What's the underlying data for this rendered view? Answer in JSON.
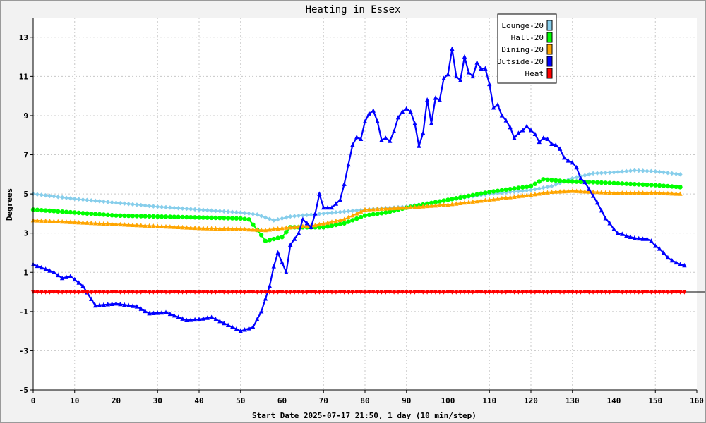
{
  "chart_data": {
    "type": "line",
    "title": "Heating in Essex",
    "xlabel": "Start Date 2025-07-17 21:50, 1 day (10 min/step)",
    "ylabel": "Degrees",
    "xlim": [
      0,
      160
    ],
    "ylim": [
      -5,
      14
    ],
    "x_ticks": [
      0,
      10,
      20,
      30,
      40,
      50,
      60,
      70,
      80,
      90,
      100,
      110,
      120,
      130,
      140,
      150,
      160
    ],
    "y_ticks": [
      -5,
      -3,
      -1,
      1,
      3,
      5,
      7,
      9,
      11,
      13
    ],
    "grid": true,
    "legend_position": "top-right",
    "series": [
      {
        "name": "Lounge-20",
        "color": "#87ceeb",
        "marker": "diamond",
        "points": [
          [
            0,
            5.0
          ],
          [
            10,
            4.75
          ],
          [
            20,
            4.55
          ],
          [
            30,
            4.35
          ],
          [
            40,
            4.2
          ],
          [
            50,
            4.05
          ],
          [
            54,
            3.95
          ],
          [
            58,
            3.65
          ],
          [
            62,
            3.85
          ],
          [
            70,
            4.0
          ],
          [
            80,
            4.2
          ],
          [
            90,
            4.35
          ],
          [
            100,
            4.7
          ],
          [
            110,
            5.0
          ],
          [
            120,
            5.2
          ],
          [
            125,
            5.4
          ],
          [
            130,
            5.8
          ],
          [
            135,
            6.05
          ],
          [
            140,
            6.1
          ],
          [
            145,
            6.2
          ],
          [
            150,
            6.15
          ],
          [
            156,
            6.0
          ]
        ]
      },
      {
        "name": "Hall-20",
        "color": "#00ff00",
        "marker": "circle",
        "points": [
          [
            0,
            4.2
          ],
          [
            10,
            4.05
          ],
          [
            20,
            3.9
          ],
          [
            30,
            3.85
          ],
          [
            40,
            3.8
          ],
          [
            50,
            3.75
          ],
          [
            52,
            3.7
          ],
          [
            55,
            2.9
          ],
          [
            56,
            2.6
          ],
          [
            60,
            2.8
          ],
          [
            62,
            3.3
          ],
          [
            70,
            3.3
          ],
          [
            75,
            3.5
          ],
          [
            80,
            3.9
          ],
          [
            85,
            4.05
          ],
          [
            90,
            4.3
          ],
          [
            100,
            4.7
          ],
          [
            105,
            4.9
          ],
          [
            110,
            5.1
          ],
          [
            115,
            5.25
          ],
          [
            120,
            5.4
          ],
          [
            123,
            5.75
          ],
          [
            128,
            5.65
          ],
          [
            135,
            5.6
          ],
          [
            145,
            5.5
          ],
          [
            150,
            5.45
          ],
          [
            156,
            5.35
          ]
        ]
      },
      {
        "name": "Dining-20",
        "color": "#ffa500",
        "marker": "triangle-up",
        "points": [
          [
            0,
            3.65
          ],
          [
            10,
            3.55
          ],
          [
            20,
            3.45
          ],
          [
            30,
            3.35
          ],
          [
            40,
            3.25
          ],
          [
            50,
            3.2
          ],
          [
            56,
            3.15
          ],
          [
            60,
            3.25
          ],
          [
            68,
            3.4
          ],
          [
            75,
            3.7
          ],
          [
            80,
            4.2
          ],
          [
            85,
            4.25
          ],
          [
            90,
            4.3
          ],
          [
            100,
            4.45
          ],
          [
            110,
            4.7
          ],
          [
            120,
            4.95
          ],
          [
            125,
            5.1
          ],
          [
            130,
            5.15
          ],
          [
            140,
            5.05
          ],
          [
            150,
            5.05
          ],
          [
            156,
            5.0
          ]
        ]
      },
      {
        "name": "Outside-20",
        "color": "#0000ff",
        "marker": "triangle-up",
        "points": [
          [
            0,
            1.4
          ],
          [
            5,
            1.0
          ],
          [
            7,
            0.7
          ],
          [
            9,
            0.8
          ],
          [
            12,
            0.3
          ],
          [
            15,
            -0.7
          ],
          [
            20,
            -0.6
          ],
          [
            25,
            -0.75
          ],
          [
            28,
            -1.1
          ],
          [
            32,
            -1.05
          ],
          [
            37,
            -1.45
          ],
          [
            40,
            -1.4
          ],
          [
            43,
            -1.3
          ],
          [
            47,
            -1.7
          ],
          [
            50,
            -2.0
          ],
          [
            53,
            -1.8
          ],
          [
            55,
            -1.0
          ],
          [
            57,
            0.3
          ],
          [
            58,
            1.3
          ],
          [
            59,
            2.0
          ],
          [
            61,
            1.0
          ],
          [
            62,
            2.4
          ],
          [
            64,
            3.0
          ],
          [
            65,
            3.7
          ],
          [
            67,
            3.3
          ],
          [
            68,
            4.0
          ],
          [
            69,
            5.0
          ],
          [
            70,
            4.3
          ],
          [
            72,
            4.3
          ],
          [
            74,
            4.7
          ],
          [
            75,
            5.5
          ],
          [
            76,
            6.5
          ],
          [
            77,
            7.5
          ],
          [
            78,
            7.9
          ],
          [
            79,
            7.8
          ],
          [
            80,
            8.7
          ],
          [
            81,
            9.1
          ],
          [
            82,
            9.25
          ],
          [
            83,
            8.7
          ],
          [
            84,
            7.75
          ],
          [
            85,
            7.85
          ],
          [
            86,
            7.7
          ],
          [
            87,
            8.2
          ],
          [
            88,
            8.9
          ],
          [
            89,
            9.2
          ],
          [
            90,
            9.35
          ],
          [
            91,
            9.2
          ],
          [
            92,
            8.6
          ],
          [
            93,
            7.45
          ],
          [
            94,
            8.1
          ],
          [
            95,
            9.8
          ],
          [
            96,
            8.6
          ],
          [
            97,
            9.9
          ],
          [
            98,
            9.8
          ],
          [
            99,
            10.9
          ],
          [
            100,
            11.1
          ],
          [
            101,
            12.4
          ],
          [
            102,
            11.0
          ],
          [
            103,
            10.8
          ],
          [
            104,
            12.0
          ],
          [
            105,
            11.2
          ],
          [
            106,
            11.0
          ],
          [
            107,
            11.7
          ],
          [
            108,
            11.4
          ],
          [
            109,
            11.4
          ],
          [
            110,
            10.6
          ],
          [
            111,
            9.4
          ],
          [
            112,
            9.55
          ],
          [
            113,
            9.0
          ],
          [
            114,
            8.75
          ],
          [
            115,
            8.4
          ],
          [
            116,
            7.85
          ],
          [
            117,
            8.1
          ],
          [
            118,
            8.25
          ],
          [
            119,
            8.45
          ],
          [
            120,
            8.25
          ],
          [
            121,
            8.05
          ],
          [
            122,
            7.65
          ],
          [
            123,
            7.85
          ],
          [
            124,
            7.8
          ],
          [
            125,
            7.55
          ],
          [
            126,
            7.5
          ],
          [
            127,
            7.3
          ],
          [
            128,
            6.85
          ],
          [
            129,
            6.7
          ],
          [
            130,
            6.6
          ],
          [
            131,
            6.35
          ],
          [
            132,
            5.8
          ],
          [
            133,
            5.6
          ],
          [
            134,
            5.25
          ],
          [
            135,
            4.9
          ],
          [
            136,
            4.55
          ],
          [
            137,
            4.15
          ],
          [
            138,
            3.75
          ],
          [
            139,
            3.5
          ],
          [
            140,
            3.2
          ],
          [
            141,
            3.0
          ],
          [
            142,
            2.95
          ],
          [
            143,
            2.85
          ],
          [
            144,
            2.8
          ],
          [
            145,
            2.75
          ],
          [
            146,
            2.72
          ],
          [
            147,
            2.7
          ],
          [
            148,
            2.7
          ],
          [
            149,
            2.6
          ],
          [
            150,
            2.35
          ],
          [
            151,
            2.2
          ],
          [
            152,
            2.0
          ],
          [
            153,
            1.75
          ],
          [
            154,
            1.6
          ],
          [
            155,
            1.5
          ],
          [
            156,
            1.4
          ],
          [
            157,
            1.35
          ]
        ]
      },
      {
        "name": "Heat",
        "color": "#ff0000",
        "marker": "triangle-down",
        "points": [
          [
            0,
            0
          ],
          [
            157,
            0
          ]
        ]
      }
    ]
  }
}
